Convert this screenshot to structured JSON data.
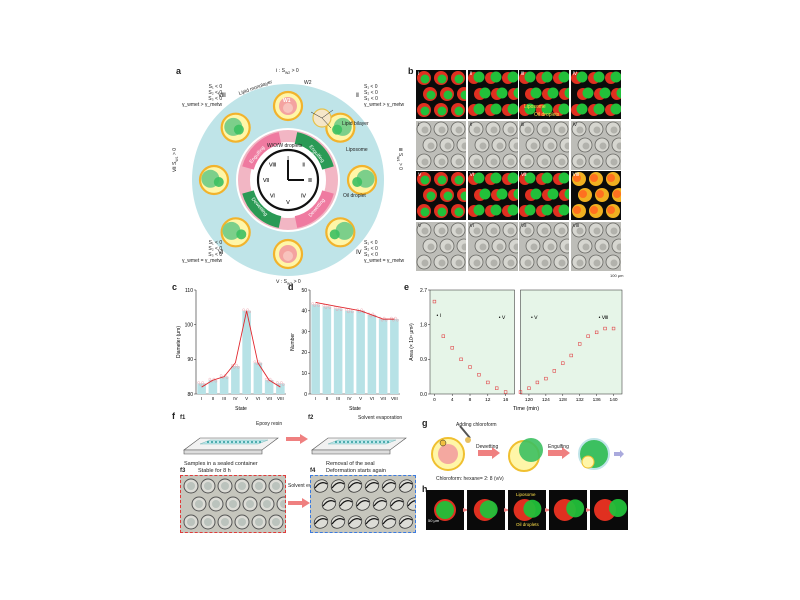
{
  "panel_labels": {
    "a": "a",
    "b": "b",
    "c": "c",
    "d": "d",
    "e": "e",
    "f": "f",
    "g": "g",
    "h": "h"
  },
  "panel_a": {
    "top_stage": "Ⅰ : S",
    "top_stage_sub": "W2",
    "top_stage_tail": " > 0",
    "bottom_stage": "Ⅴ : S",
    "bottom_stage_sub": "W2",
    "bottom_stage_tail": " > 0",
    "left_stage": "Ⅶ",
    "left_stage_expr": "S",
    "left_stage_sub": "W1",
    "left_stage_tail": " > 0",
    "right_stage": "Ⅲ",
    "right_stage_expr": "S",
    "right_stage_sub": "W1",
    "right_stage_tail": " > 0",
    "ineq_tl": [
      "S₁ < 0",
      "S₂ < 0",
      "S₃ < 0",
      "γ_wmet > γ_metw"
    ],
    "ineq_tl_roman": "Ⅷ",
    "ineq_tr": [
      "S₁ < 0",
      "S₂ < 0",
      "S₃ < 0",
      "γ_wmet > γ_metw"
    ],
    "ineq_tr_roman": "Ⅱ",
    "ineq_bl": [
      "S₁ < 0",
      "S₂ < 0",
      "S₃ < 0",
      "γ_wmet = γ_metw"
    ],
    "ineq_bl_roman": "Ⅵ",
    "ineq_br": [
      "S₁ < 0",
      "S₂ < 0",
      "S₃ < 0",
      "γ_wmet = γ_metw"
    ],
    "ineq_br_roman": "Ⅳ",
    "w1": "W1",
    "w2": "W2",
    "lipid_monolayer": "Lipid monolayer",
    "lipid_bilayer": "Lipid bilayer",
    "liposome": "Liposome",
    "oil_droplet": "Oil droplet",
    "wow": "W/O/W droplets",
    "arrow_labels": [
      "Engulfing",
      "Dewetting",
      "Dewetting",
      "Engulfing"
    ],
    "clock_numerals": [
      "Ⅰ",
      "Ⅱ",
      "Ⅲ",
      "Ⅳ",
      "Ⅴ",
      "Ⅵ",
      "Ⅶ",
      "Ⅷ"
    ]
  },
  "panel_b": {
    "numerals": [
      "Ⅰ",
      "Ⅱ",
      "Ⅲ",
      "Ⅳ",
      "Ⅴ",
      "Ⅵ",
      "Ⅶ",
      "Ⅷ"
    ],
    "liposome": "Liposome",
    "oil_droplets": "Oil droplets",
    "scale": "100 μm"
  },
  "panel_c": {
    "chart_data": {
      "type": "bar",
      "categories": [
        "I",
        "II",
        "III",
        "IV",
        "V",
        "VI",
        "VII",
        "VIII"
      ],
      "values": [
        83,
        84,
        85,
        88,
        104,
        89,
        84,
        83
      ],
      "line": [
        82,
        84,
        85,
        89,
        104,
        89,
        84,
        82
      ],
      "xlabel": "State",
      "ylabel": "Diameter (μm)",
      "ylim": [
        80,
        110
      ],
      "yticks": [
        80,
        90,
        100,
        110
      ],
      "bar_color": "#b7e2e6",
      "line_color": "#e0282e"
    }
  },
  "panel_d": {
    "chart_data": {
      "type": "bar",
      "categories": [
        "I",
        "II",
        "III",
        "IV",
        "V",
        "VI",
        "VII",
        "VIII"
      ],
      "values": [
        43,
        42,
        41,
        40,
        40,
        38,
        36,
        36
      ],
      "line": [
        44,
        43,
        42,
        41,
        40,
        38,
        36,
        36
      ],
      "xlabel": "State",
      "ylabel": "Number",
      "ylim": [
        0,
        50
      ],
      "yticks": [
        0,
        10,
        20,
        30,
        40,
        50
      ],
      "bar_color": "#b7e2e6",
      "line_color": "#e0282e"
    }
  },
  "panel_e": {
    "chart_data": {
      "type": "scatter",
      "xlabel": "Time (min)",
      "ylabel": "Area (× 10⁴ μm²)",
      "ylim": [
        0,
        2.7
      ],
      "yticks": [
        0.0,
        0.9,
        1.8,
        2.7
      ],
      "xticks_left": [
        0,
        4,
        8,
        12,
        16
      ],
      "xticks_right": [
        120,
        124,
        128,
        132,
        136,
        140
      ],
      "series_left": {
        "x": [
          0,
          2,
          4,
          6,
          8,
          10,
          12,
          14,
          16
        ],
        "y": [
          2.4,
          1.5,
          1.2,
          0.9,
          0.7,
          0.5,
          0.3,
          0.15,
          0.05
        ]
      },
      "series_right": {
        "x": [
          118,
          120,
          122,
          124,
          126,
          128,
          130,
          132,
          134,
          136,
          138,
          140
        ],
        "y": [
          0.05,
          0.15,
          0.3,
          0.4,
          0.6,
          0.8,
          1.0,
          1.3,
          1.5,
          1.6,
          1.7,
          1.7
        ]
      },
      "annot_left": [
        {
          "x": 0,
          "y": 2.0,
          "label": "Ⅰ"
        },
        {
          "x": 14,
          "y": 1.95,
          "label": "Ⅴ"
        }
      ],
      "annot_right": [
        {
          "x": 120,
          "y": 1.95,
          "label": "Ⅴ"
        },
        {
          "x": 136,
          "y": 1.95,
          "label": "Ⅷ"
        }
      ]
    }
  },
  "panel_f": {
    "f1": "f1",
    "f2": "f2",
    "f3": "f3",
    "f4": "f4",
    "epoxy": "Epoxy resin",
    "solvent_evap": "Solvent evaporation",
    "sealed": "Samples in a sealed container",
    "removal": "Removal of the seal",
    "stable": "Stable for 8 h",
    "solvent_evap2": "Solvent evaporation",
    "deform": "Deformation starts again"
  },
  "panel_g": {
    "adding": "Adding chloroform",
    "dewetting": "Dewetting",
    "engulfing": "Engulfing",
    "ratio": "Chloroform: hexane= 2: 8 (v/v)"
  },
  "panel_h": {
    "scale": "50 μm",
    "liposome": "Liposome",
    "oil_droplets": "Oil droplets"
  }
}
